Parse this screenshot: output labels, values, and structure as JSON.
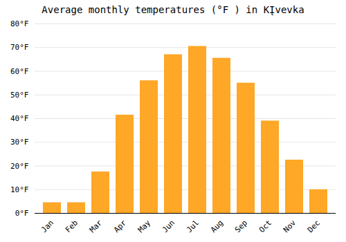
{
  "chart_data": {
    "type": "bar",
    "title": "Average monthly temperatures (°F ) in KĮvevka",
    "categories": [
      "Jan",
      "Feb",
      "Mar",
      "Apr",
      "May",
      "Jun",
      "Jul",
      "Aug",
      "Sep",
      "Oct",
      "Nov",
      "Dec"
    ],
    "values": [
      4.5,
      4.5,
      17.5,
      41.5,
      56,
      67,
      70.5,
      65.5,
      55,
      39,
      22.5,
      10
    ],
    "color": "#FFA726",
    "ylim": [
      0,
      80
    ],
    "yticks": [
      {
        "value": 0,
        "label": "0°F"
      },
      {
        "value": 10,
        "label": "10°F"
      },
      {
        "value": 20,
        "label": "20°F"
      },
      {
        "value": 30,
        "label": "30°F"
      },
      {
        "value": 40,
        "label": "40°F"
      },
      {
        "value": 50,
        "label": "50°F"
      },
      {
        "value": 60,
        "label": "60°F"
      },
      {
        "value": 70,
        "label": "70°F"
      },
      {
        "value": 80,
        "label": "80°F"
      }
    ],
    "grid": true
  }
}
